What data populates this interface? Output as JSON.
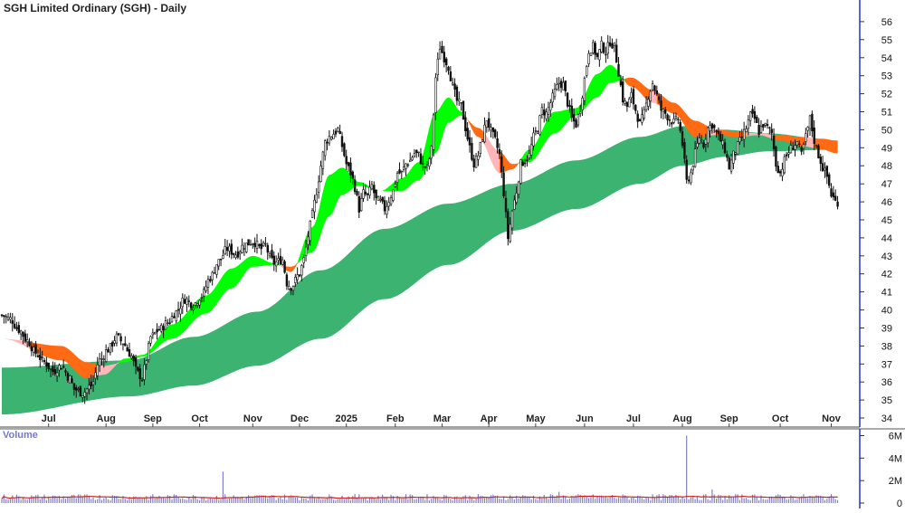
{
  "chart_data": {
    "type": "candlestick",
    "title": "SGH Limited Ordinary (SGH) - Daily",
    "price_axis": {
      "min": 33.5,
      "max": 56.8,
      "ticks": [
        34,
        35,
        36,
        37,
        38,
        39,
        40,
        41,
        42,
        43,
        44,
        45,
        46,
        47,
        48,
        49,
        50,
        51,
        52,
        53,
        54,
        55,
        56
      ]
    },
    "x_labels": [
      "Jul",
      "Aug",
      "Sep",
      "Oct",
      "Nov",
      "Dec",
      "2025",
      "Feb",
      "Mar",
      "Apr",
      "May",
      "Jun",
      "Jul",
      "Aug",
      "Sep",
      "Oct",
      "Nov"
    ],
    "price_key_points": [
      [
        0,
        39.7
      ],
      [
        4,
        39.5
      ],
      [
        8,
        38.9
      ],
      [
        12,
        38.3
      ],
      [
        16,
        37.6
      ],
      [
        20,
        37.1
      ],
      [
        24,
        36.6
      ],
      [
        28,
        36.9
      ],
      [
        32,
        36.2
      ],
      [
        34,
        35.6
      ],
      [
        38,
        35.4
      ],
      [
        42,
        35.8
      ],
      [
        46,
        37.2
      ],
      [
        50,
        37.8
      ],
      [
        54,
        38.5
      ],
      [
        57,
        38.2
      ],
      [
        60,
        37.6
      ],
      [
        64,
        36.5
      ],
      [
        66,
        36.2
      ],
      [
        68,
        37.3
      ],
      [
        70,
        38.5
      ],
      [
        74,
        38.9
      ],
      [
        78,
        39.3
      ],
      [
        82,
        39.9
      ],
      [
        86,
        40.6
      ],
      [
        90,
        40.3
      ],
      [
        94,
        40.8
      ],
      [
        98,
        41.8
      ],
      [
        102,
        42.7
      ],
      [
        106,
        43.4
      ],
      [
        110,
        43.1
      ],
      [
        114,
        43.6
      ],
      [
        118,
        43.8
      ],
      [
        122,
        43.4
      ],
      [
        124,
        43.6
      ],
      [
        126,
        42.9
      ],
      [
        128,
        42.6
      ],
      [
        132,
        42.8
      ],
      [
        134,
        41.5
      ],
      [
        136,
        41.3
      ],
      [
        140,
        42.0
      ],
      [
        142,
        42.8
      ],
      [
        144,
        44.1
      ],
      [
        146,
        45.3
      ],
      [
        148,
        46.6
      ],
      [
        150,
        48.0
      ],
      [
        152,
        49.3
      ],
      [
        154,
        49.6
      ],
      [
        156,
        49.8
      ],
      [
        158,
        50.0
      ],
      [
        160,
        49.1
      ],
      [
        162,
        48.1
      ],
      [
        164,
        47.6
      ],
      [
        166,
        46.8
      ],
      [
        168,
        45.6
      ],
      [
        170,
        46.5
      ],
      [
        172,
        46.3
      ],
      [
        174,
        46.9
      ],
      [
        176,
        46.1
      ],
      [
        178,
        46.0
      ],
      [
        180,
        45.6
      ],
      [
        182,
        46.1
      ],
      [
        184,
        46.6
      ],
      [
        186,
        47.6
      ],
      [
        188,
        47.6
      ],
      [
        190,
        48.1
      ],
      [
        192,
        48.3
      ],
      [
        194,
        48.7
      ],
      [
        196,
        48.6
      ],
      [
        198,
        48.0
      ],
      [
        200,
        47.9
      ],
      [
        202,
        48.9
      ],
      [
        204,
        52.9
      ],
      [
        206,
        54.6
      ],
      [
        208,
        54.0
      ],
      [
        210,
        53.5
      ],
      [
        212,
        52.4
      ],
      [
        214,
        51.6
      ],
      [
        216,
        51.3
      ],
      [
        218,
        50.1
      ],
      [
        220,
        49.0
      ],
      [
        222,
        48.1
      ],
      [
        224,
        48.6
      ],
      [
        226,
        49.6
      ],
      [
        228,
        50.6
      ],
      [
        230,
        49.9
      ],
      [
        232,
        49.4
      ],
      [
        234,
        48.6
      ],
      [
        236,
        46.5
      ],
      [
        238,
        44.0
      ],
      [
        240,
        45.5
      ],
      [
        242,
        46.6
      ],
      [
        244,
        48.1
      ],
      [
        246,
        48.3
      ],
      [
        248,
        48.6
      ],
      [
        250,
        49.6
      ],
      [
        252,
        50.1
      ],
      [
        254,
        51.1
      ],
      [
        256,
        50.9
      ],
      [
        258,
        51.5
      ],
      [
        260,
        52.1
      ],
      [
        262,
        52.6
      ],
      [
        264,
        52.5
      ],
      [
        266,
        51.5
      ],
      [
        268,
        50.6
      ],
      [
        270,
        50.3
      ],
      [
        272,
        51.2
      ],
      [
        274,
        52.8
      ],
      [
        276,
        54.4
      ],
      [
        278,
        54.6
      ],
      [
        280,
        54.0
      ],
      [
        282,
        54.7
      ],
      [
        284,
        54.3
      ],
      [
        286,
        54.9
      ],
      [
        288,
        54.6
      ],
      [
        290,
        53.2
      ],
      [
        292,
        51.7
      ],
      [
        294,
        51.3
      ],
      [
        296,
        51.9
      ],
      [
        298,
        51.1
      ],
      [
        300,
        50.3
      ],
      [
        302,
        50.9
      ],
      [
        304,
        51.9
      ],
      [
        306,
        52.6
      ],
      [
        308,
        51.9
      ],
      [
        310,
        51.1
      ],
      [
        312,
        50.9
      ],
      [
        314,
        50.6
      ],
      [
        316,
        50.4
      ],
      [
        318,
        50.6
      ],
      [
        320,
        49.2
      ],
      [
        322,
        47.1
      ],
      [
        324,
        47.6
      ],
      [
        326,
        48.7
      ],
      [
        328,
        49.6
      ],
      [
        330,
        49.2
      ],
      [
        332,
        50.1
      ],
      [
        334,
        50.3
      ],
      [
        336,
        49.8
      ],
      [
        338,
        49.4
      ],
      [
        340,
        48.9
      ],
      [
        342,
        47.9
      ],
      [
        344,
        48.6
      ],
      [
        346,
        49.1
      ],
      [
        348,
        49.6
      ],
      [
        350,
        50.1
      ],
      [
        352,
        50.8
      ],
      [
        354,
        50.6
      ],
      [
        356,
        49.9
      ],
      [
        358,
        50.3
      ],
      [
        360,
        50.1
      ],
      [
        362,
        49.8
      ],
      [
        364,
        48.1
      ],
      [
        366,
        47.6
      ],
      [
        368,
        48.3
      ],
      [
        370,
        48.8
      ],
      [
        372,
        49.1
      ],
      [
        374,
        49.3
      ],
      [
        376,
        48.6
      ],
      [
        378,
        49.6
      ],
      [
        380,
        50.6
      ],
      [
        382,
        49.4
      ],
      [
        384,
        48.6
      ],
      [
        386,
        47.9
      ],
      [
        388,
        47.4
      ],
      [
        390,
        46.4
      ],
      [
        392,
        46.0
      ]
    ],
    "short_ribbon_fast_key_points": [
      [
        0,
        38.4
      ],
      [
        28,
        37.2
      ],
      [
        40,
        36.2
      ],
      [
        48,
        36.4
      ],
      [
        58,
        37.3
      ],
      [
        66,
        37.5
      ],
      [
        80,
        39.2
      ],
      [
        96,
        40.8
      ],
      [
        108,
        42.3
      ],
      [
        118,
        43.0
      ],
      [
        128,
        42.6
      ],
      [
        136,
        42.1
      ],
      [
        146,
        44.6
      ],
      [
        154,
        47.5
      ],
      [
        160,
        47.9
      ],
      [
        168,
        47.1
      ],
      [
        178,
        46.6
      ],
      [
        188,
        47.3
      ],
      [
        196,
        48.2
      ],
      [
        204,
        51.0
      ],
      [
        210,
        51.8
      ],
      [
        216,
        51.0
      ],
      [
        224,
        49.6
      ],
      [
        234,
        47.6
      ],
      [
        240,
        47.8
      ],
      [
        248,
        48.9
      ],
      [
        260,
        51.0
      ],
      [
        270,
        51.2
      ],
      [
        280,
        53.1
      ],
      [
        286,
        53.6
      ],
      [
        296,
        52.4
      ],
      [
        306,
        51.5
      ],
      [
        316,
        50.9
      ],
      [
        326,
        49.6
      ],
      [
        336,
        49.7
      ],
      [
        346,
        49.6
      ],
      [
        356,
        49.7
      ],
      [
        366,
        49.4
      ],
      [
        376,
        49.1
      ],
      [
        386,
        48.9
      ],
      [
        392,
        48.7
      ]
    ],
    "short_ribbon_slow_key_points": [
      [
        0,
        38.4
      ],
      [
        28,
        38.0
      ],
      [
        40,
        37.1
      ],
      [
        48,
        36.9
      ],
      [
        58,
        37.1
      ],
      [
        66,
        37.4
      ],
      [
        80,
        38.4
      ],
      [
        96,
        39.8
      ],
      [
        108,
        41.2
      ],
      [
        118,
        42.4
      ],
      [
        128,
        42.5
      ],
      [
        136,
        42.4
      ],
      [
        146,
        43.2
      ],
      [
        154,
        45.2
      ],
      [
        160,
        46.4
      ],
      [
        168,
        46.9
      ],
      [
        178,
        46.6
      ],
      [
        188,
        46.6
      ],
      [
        196,
        47.2
      ],
      [
        204,
        48.7
      ],
      [
        210,
        50.4
      ],
      [
        216,
        50.8
      ],
      [
        224,
        50.1
      ],
      [
        234,
        48.8
      ],
      [
        240,
        48.1
      ],
      [
        248,
        48.2
      ],
      [
        260,
        49.8
      ],
      [
        270,
        50.8
      ],
      [
        280,
        51.8
      ],
      [
        286,
        52.6
      ],
      [
        296,
        52.9
      ],
      [
        306,
        52.2
      ],
      [
        316,
        51.5
      ],
      [
        326,
        50.5
      ],
      [
        336,
        50.0
      ],
      [
        346,
        49.9
      ],
      [
        356,
        49.8
      ],
      [
        366,
        49.7
      ],
      [
        376,
        49.6
      ],
      [
        386,
        49.5
      ],
      [
        392,
        49.4
      ]
    ],
    "long_ribbon_top_key_points": [
      [
        0,
        36.8
      ],
      [
        60,
        37.2
      ],
      [
        90,
        38.5
      ],
      [
        120,
        39.9
      ],
      [
        150,
        42.2
      ],
      [
        180,
        44.5
      ],
      [
        210,
        45.9
      ],
      [
        240,
        47.0
      ],
      [
        270,
        48.3
      ],
      [
        300,
        49.6
      ],
      [
        320,
        50.2
      ],
      [
        340,
        50.0
      ],
      [
        360,
        49.8
      ],
      [
        392,
        49.4
      ]
    ],
    "long_ribbon_bottom_key_points": [
      [
        0,
        34.2
      ],
      [
        60,
        35.2
      ],
      [
        90,
        35.8
      ],
      [
        120,
        36.9
      ],
      [
        150,
        38.4
      ],
      [
        180,
        40.6
      ],
      [
        210,
        42.5
      ],
      [
        240,
        44.4
      ],
      [
        270,
        45.6
      ],
      [
        300,
        47.0
      ],
      [
        320,
        48.0
      ],
      [
        340,
        48.5
      ],
      [
        360,
        48.8
      ],
      [
        392,
        48.9
      ]
    ],
    "volume_axis": {
      "label": "Volume",
      "ticks": [
        "6M",
        "4M",
        "2M",
        "0"
      ],
      "max_millions": 6.6
    },
    "volume_spikes_millions": [
      {
        "at": 104,
        "value": 2.8
      },
      {
        "at": 322,
        "value": 6.0
      },
      {
        "at": 262,
        "value": 1.0
      },
      {
        "at": 334,
        "value": 1.2
      }
    ],
    "colors": {
      "up_ribbon": "#00ff00",
      "down_ribbon": "#ff6a13",
      "pink_ribbon": "#ffb6b9",
      "long_ribbon": "#3cb371",
      "volume_bar": "#8080c8",
      "volume_ma": "#cc2222",
      "candle": "#111111",
      "price_axis_line": "#2233cc"
    }
  }
}
